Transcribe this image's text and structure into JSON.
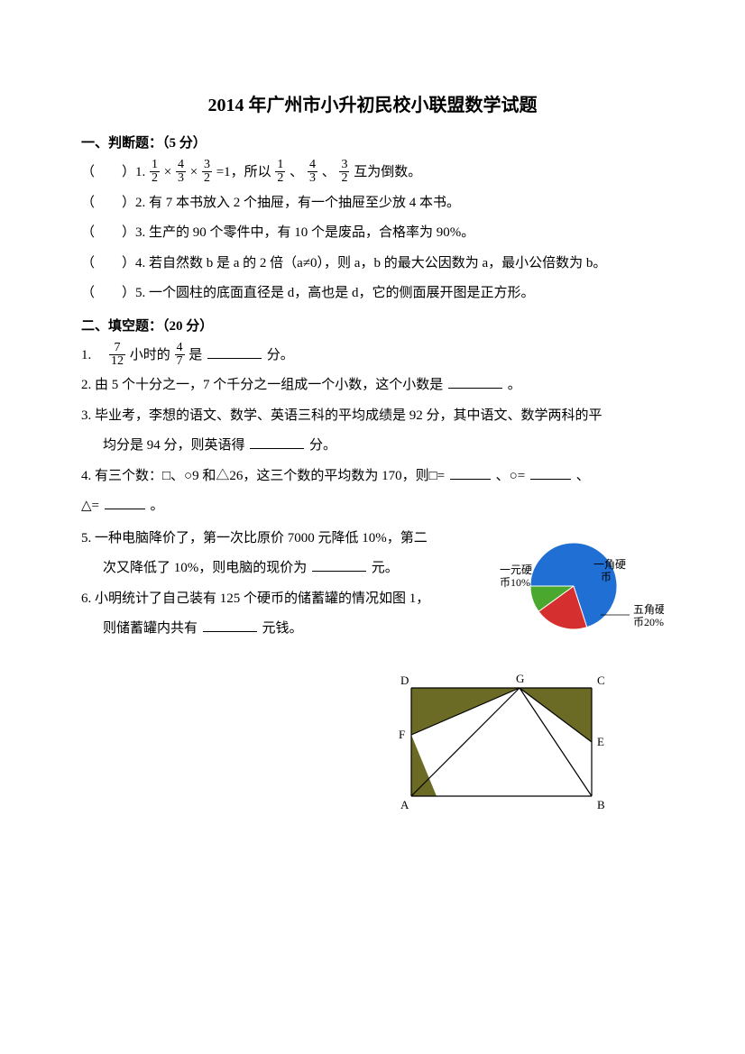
{
  "title": "2014 年广州市小升初民校小联盟数学试题",
  "sec1": {
    "header": "一、判断题：（5 分）",
    "q1_a": "（　　）1.",
    "q1_b": "=1，所以",
    "q1_c": "互为倒数。",
    "q2": "（　　）2. 有 7 本书放入 2 个抽屉，有一个抽屉至少放 4 本书。",
    "q3": "（　　）3. 生产的 90 个零件中，有 10 个是废品，合格率为 90%。",
    "q4": "（　　）4. 若自然数 b 是 a 的 2 倍（a≠0），则 a，b 的最大公因数为 a，最小公倍数为 b。",
    "q5": "（　　）5. 一个圆柱的底面直径是 d，高也是 d，它的侧面展开图是正方形。"
  },
  "sec2": {
    "header": "二、填空题：（20 分）",
    "q1_a": "1.　",
    "q1_b": "小时的",
    "q1_c": "是",
    "q1_d": "分。",
    "q2_a": "2. 由 5 个十分之一，7 个千分之一组成一个小数，这个小数是",
    "q2_b": "。",
    "q3_a": "3. 毕业考，李想的语文、数学、英语三科的平均成绩是 92 分，其中语文、数学两科的平",
    "q3_b": "均分是 94 分，则英语得",
    "q3_c": "分。",
    "q4_a": "4. 有三个数：□、○9 和△26，这三个数的平均数为 170，则□=",
    "q4_b": "、○=",
    "q4_c": "、",
    "q4_d": "△=",
    "q4_e": "。",
    "q5_a": "5. 一种电脑降价了，第一次比原价 7000 元降低 10%，第二",
    "q5_b": "次又降低了 10%，则电脑的现价为",
    "q5_c": "元。",
    "q6_a": "6. 小明统计了自己装有 125 个硬币的储蓄罐的情况如图 1，",
    "q6_b": "则储蓄罐内共有",
    "q6_c": "元钱。"
  },
  "pie": {
    "slices": [
      {
        "label": "一元硬币10%",
        "color": "#4aa82f",
        "start": 180,
        "end": 216
      },
      {
        "label": "一角硬币",
        "color": "#1f6fd4",
        "start": 216,
        "end": 468
      },
      {
        "label": "五角硬币20%",
        "color": "#d62f2f",
        "start": 108,
        "end": 180
      }
    ],
    "label_left_l1": "一元硬",
    "label_left_l2": "币10%",
    "label_top_l1": "一角硬",
    "label_top_l2": "币",
    "label_right_l1": "五角硬",
    "label_right_l2": "币20%",
    "bg": "#ffffff"
  },
  "geom": {
    "stroke": "#000000",
    "fill": "#6b6b25",
    "labels": {
      "A": "A",
      "B": "B",
      "C": "C",
      "D": "D",
      "E": "E",
      "F": "F",
      "G": "G"
    }
  },
  "fracs": {
    "half": {
      "n": "1",
      "d": "2"
    },
    "ft": {
      "n": "4",
      "d": "3"
    },
    "th": {
      "n": "3",
      "d": "2"
    },
    "s12": {
      "n": "7",
      "d": "12"
    },
    "f47": {
      "n": "4",
      "d": "7"
    }
  }
}
